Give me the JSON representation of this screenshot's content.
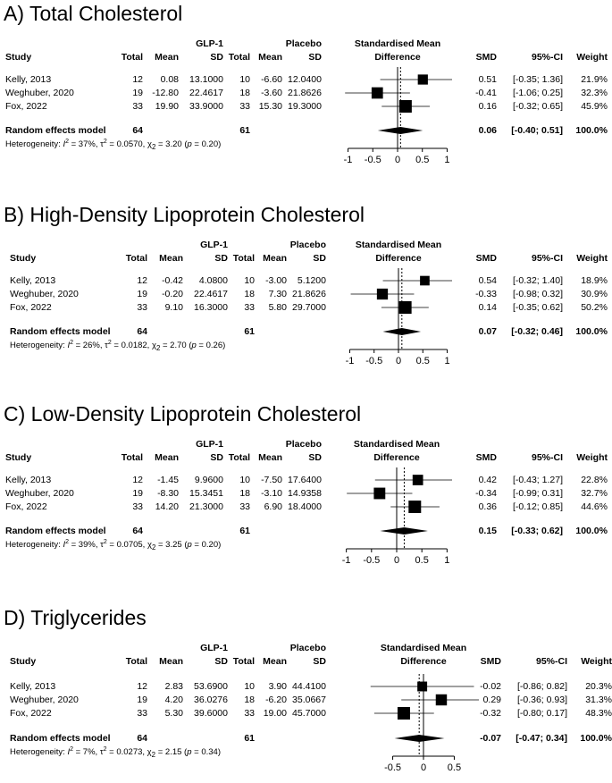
{
  "chart_data": [
    {
      "type": "forest",
      "title": "A) Total Cholesterol",
      "xticks": [
        -1,
        -0.5,
        0,
        0.5,
        1
      ],
      "xlim": [
        -1.1,
        1.1
      ],
      "pooled_line": 0.06,
      "column_headers": {
        "study": "Study",
        "group1": "GLP-1",
        "group2": "Placebo",
        "total": "Total",
        "mean": "Mean",
        "sd": "SD",
        "effect": "Standardised Mean",
        "effect2": "Difference",
        "smd": "SMD",
        "ci": "95%-CI",
        "weight": "Weight"
      },
      "studies": [
        {
          "study": "Kelly, 2013",
          "n1": "12",
          "mean1": "0.08",
          "sd1": "13.1000",
          "n2": "10",
          "mean2": "-6.60",
          "sd2": "12.0400",
          "smd": 0.51,
          "smd_text": "0.51",
          "lo": -0.35,
          "hi": 1.36,
          "ci": "[-0.35; 1.36]",
          "weight": 21.9,
          "weight_text": "21.9%"
        },
        {
          "study": "Weghuber, 2020",
          "n1": "19",
          "mean1": "-12.80",
          "sd1": "22.4617",
          "n2": "18",
          "mean2": "-3.60",
          "sd2": "21.8626",
          "smd": -0.41,
          "smd_text": "-0.41",
          "lo": -1.06,
          "hi": 0.25,
          "ci": "[-1.06; 0.25]",
          "weight": 32.3,
          "weight_text": "32.3%"
        },
        {
          "study": "Fox, 2022",
          "n1": "33",
          "mean1": "19.90",
          "sd1": "33.9000",
          "n2": "33",
          "mean2": "15.30",
          "sd2": "19.3000",
          "smd": 0.16,
          "smd_text": "0.16",
          "lo": -0.32,
          "hi": 0.65,
          "ci": "[-0.32; 0.65]",
          "weight": 45.9,
          "weight_text": "45.9%"
        }
      ],
      "pooled": {
        "label": "Random effects model",
        "n1": "64",
        "n2": "61",
        "smd": 0.06,
        "smd_text": "0.06",
        "lo": -0.4,
        "hi": 0.51,
        "ci": "[-0.40; 0.51]",
        "weight_text": "100.0%"
      },
      "heterogeneity": {
        "prefix": "Heterogeneity: ",
        "i2": "I",
        "i2_val": " = 37%, ",
        "tau": "τ",
        "tau_val": " = 0.0570, ",
        "chi": "χ",
        "chi_sub": "2",
        "chi_val": " = 3.20 (",
        "p": "p",
        "p_val": " = 0.20)"
      }
    },
    {
      "type": "forest",
      "title": "B) High-Density Lipoprotein Cholesterol",
      "xticks": [
        -1,
        -0.5,
        0,
        0.5,
        1
      ],
      "xlim": [
        -1.1,
        1.1
      ],
      "pooled_line": 0.07,
      "column_headers": {
        "study": "Study",
        "group1": "GLP-1",
        "group2": "Placebo",
        "total": "Total",
        "mean": "Mean",
        "sd": "SD",
        "effect": "Standardised Mean",
        "effect2": "Difference",
        "smd": "SMD",
        "ci": "95%-CI",
        "weight": "Weight"
      },
      "studies": [
        {
          "study": "Kelly, 2013",
          "n1": "12",
          "mean1": "-0.42",
          "sd1": "4.0800",
          "n2": "10",
          "mean2": "-3.00",
          "sd2": "5.1200",
          "smd": 0.54,
          "smd_text": "0.54",
          "lo": -0.32,
          "hi": 1.4,
          "ci": "[-0.32; 1.40]",
          "weight": 18.9,
          "weight_text": "18.9%"
        },
        {
          "study": "Weghuber, 2020",
          "n1": "19",
          "mean1": "-0.20",
          "sd1": "22.4617",
          "n2": "18",
          "mean2": "7.30",
          "sd2": "21.8626",
          "smd": -0.33,
          "smd_text": "-0.33",
          "lo": -0.98,
          "hi": 0.32,
          "ci": "[-0.98; 0.32]",
          "weight": 30.9,
          "weight_text": "30.9%"
        },
        {
          "study": "Fox, 2022",
          "n1": "33",
          "mean1": "9.10",
          "sd1": "16.3000",
          "n2": "33",
          "mean2": "5.80",
          "sd2": "29.7000",
          "smd": 0.14,
          "smd_text": "0.14",
          "lo": -0.35,
          "hi": 0.62,
          "ci": "[-0.35; 0.62]",
          "weight": 50.2,
          "weight_text": "50.2%"
        }
      ],
      "pooled": {
        "label": "Random effects model",
        "n1": "64",
        "n2": "61",
        "smd": 0.07,
        "smd_text": "0.07",
        "lo": -0.32,
        "hi": 0.46,
        "ci": "[-0.32; 0.46]",
        "weight_text": "100.0%"
      },
      "heterogeneity": {
        "prefix": "Heterogeneity: ",
        "i2": "I",
        "i2_val": " = 26%, ",
        "tau": "τ",
        "tau_val": " = 0.0182, ",
        "chi": "χ",
        "chi_sub": "2",
        "chi_val": " = 2.70 (",
        "p": "p",
        "p_val": " = 0.26)"
      }
    },
    {
      "type": "forest",
      "title": "C) Low-Density Lipoprotein Cholesterol",
      "xticks": [
        -1,
        -0.5,
        0,
        0.5,
        1
      ],
      "xlim": [
        -1.1,
        1.1
      ],
      "pooled_line": 0.15,
      "column_headers": {
        "study": "Study",
        "group1": "GLP-1",
        "group2": "Placebo",
        "total": "Total",
        "mean": "Mean",
        "sd": "SD",
        "effect": "Standardised Mean",
        "effect2": "Difference",
        "smd": "SMD",
        "ci": "95%-CI",
        "weight": "Weight"
      },
      "studies": [
        {
          "study": "Kelly, 2013",
          "n1": "12",
          "mean1": "-1.45",
          "sd1": "9.9600",
          "n2": "10",
          "mean2": "-7.50",
          "sd2": "17.6400",
          "smd": 0.42,
          "smd_text": "0.42",
          "lo": -0.43,
          "hi": 1.27,
          "ci": "[-0.43; 1.27]",
          "weight": 22.8,
          "weight_text": "22.8%"
        },
        {
          "study": "Weghuber, 2020",
          "n1": "19",
          "mean1": "-8.30",
          "sd1": "15.3451",
          "n2": "18",
          "mean2": "-3.10",
          "sd2": "14.9358",
          "smd": -0.34,
          "smd_text": "-0.34",
          "lo": -0.99,
          "hi": 0.31,
          "ci": "[-0.99; 0.31]",
          "weight": 32.7,
          "weight_text": "32.7%"
        },
        {
          "study": "Fox, 2022",
          "n1": "33",
          "mean1": "14.20",
          "sd1": "21.3000",
          "n2": "33",
          "mean2": "6.90",
          "sd2": "18.4000",
          "smd": 0.36,
          "smd_text": "0.36",
          "lo": -0.12,
          "hi": 0.85,
          "ci": "[-0.12; 0.85]",
          "weight": 44.6,
          "weight_text": "44.6%"
        }
      ],
      "pooled": {
        "label": "Random effects model",
        "n1": "64",
        "n2": "61",
        "smd": 0.15,
        "smd_text": "0.15",
        "lo": -0.33,
        "hi": 0.62,
        "ci": "[-0.33; 0.62]",
        "weight_text": "100.0%"
      },
      "heterogeneity": {
        "prefix": "Heterogeneity: ",
        "i2": "I",
        "i2_val": " = 39%, ",
        "tau": "τ",
        "tau_val": " = 0.0705, ",
        "chi": "χ",
        "chi_sub": "2",
        "chi_val": " = 3.25 (",
        "p": "p",
        "p_val": " = 0.20)"
      }
    },
    {
      "type": "forest",
      "title": "D) Triglycerides",
      "xticks": [
        -0.5,
        0,
        0.5
      ],
      "xlim": [
        -0.9,
        0.9
      ],
      "pooled_line": -0.07,
      "column_headers": {
        "study": "Study",
        "group1": "GLP-1",
        "group2": "Placebo",
        "total": "Total",
        "mean": "Mean",
        "sd": "SD",
        "effect": "Standardised Mean",
        "effect2": "Difference",
        "smd": "SMD",
        "ci": "95%-CI",
        "weight": "Weight"
      },
      "studies": [
        {
          "study": "Kelly, 2013",
          "n1": "12",
          "mean1": "2.83",
          "sd1": "53.6900",
          "n2": "10",
          "mean2": "3.90",
          "sd2": "44.4100",
          "smd": -0.02,
          "smd_text": "-0.02",
          "lo": -0.86,
          "hi": 0.82,
          "ci": "[-0.86; 0.82]",
          "weight": 20.3,
          "weight_text": "20.3%"
        },
        {
          "study": "Weghuber, 2020",
          "n1": "19",
          "mean1": "4.20",
          "sd1": "36.0276",
          "n2": "18",
          "mean2": "-6.20",
          "sd2": "35.0667",
          "smd": 0.29,
          "smd_text": "0.29",
          "lo": -0.36,
          "hi": 0.93,
          "ci": "[-0.36; 0.93]",
          "weight": 31.3,
          "weight_text": "31.3%"
        },
        {
          "study": "Fox, 2022",
          "n1": "33",
          "mean1": "5.30",
          "sd1": "39.6000",
          "n2": "33",
          "mean2": "19.00",
          "sd2": "45.7000",
          "smd": -0.32,
          "smd_text": "-0.32",
          "lo": -0.8,
          "hi": 0.17,
          "ci": "[-0.80; 0.17]",
          "weight": 48.3,
          "weight_text": "48.3%"
        }
      ],
      "pooled": {
        "label": "Random effects model",
        "n1": "64",
        "n2": "61",
        "smd": -0.07,
        "smd_text": "-0.07",
        "lo": -0.47,
        "hi": 0.34,
        "ci": "[-0.47; 0.34]",
        "weight_text": "100.0%"
      },
      "heterogeneity": {
        "prefix": "Heterogeneity: ",
        "i2": "I",
        "i2_val": " = 7%, ",
        "tau": "τ",
        "tau_val": " = 0.0273, ",
        "chi": "χ",
        "chi_sub": "2",
        "chi_val": " = 2.15 (",
        "p": "p",
        "p_val": " = 0.34)"
      }
    }
  ]
}
